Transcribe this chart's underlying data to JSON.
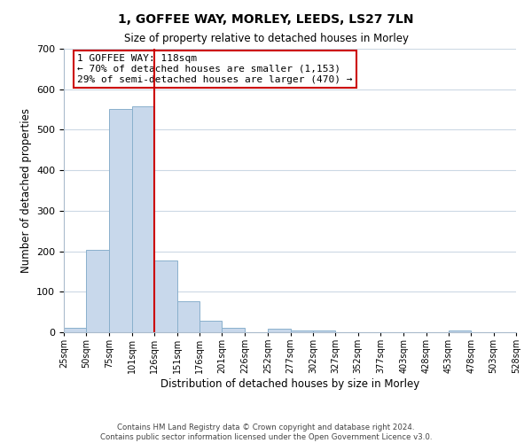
{
  "title": "1, GOFFEE WAY, MORLEY, LEEDS, LS27 7LN",
  "subtitle": "Size of property relative to detached houses in Morley",
  "xlabel": "Distribution of detached houses by size in Morley",
  "ylabel": "Number of detached properties",
  "bar_edges": [
    25,
    50,
    75,
    101,
    126,
    151,
    176,
    201,
    226,
    252,
    277,
    302,
    327,
    352,
    377,
    403,
    428,
    453,
    478,
    503,
    528
  ],
  "bar_heights": [
    10,
    203,
    552,
    558,
    178,
    77,
    29,
    10,
    0,
    8,
    5,
    5,
    0,
    0,
    0,
    0,
    0,
    5,
    0,
    0
  ],
  "bar_color": "#c8d8eb",
  "bar_edge_color": "#8ab0cc",
  "vline_x": 126,
  "vline_color": "#cc0000",
  "ylim": [
    0,
    700
  ],
  "yticks": [
    0,
    100,
    200,
    300,
    400,
    500,
    600,
    700
  ],
  "tick_labels": [
    "25sqm",
    "50sqm",
    "75sqm",
    "101sqm",
    "126sqm",
    "151sqm",
    "176sqm",
    "201sqm",
    "226sqm",
    "252sqm",
    "277sqm",
    "302sqm",
    "327sqm",
    "352sqm",
    "377sqm",
    "403sqm",
    "428sqm",
    "453sqm",
    "478sqm",
    "503sqm",
    "528sqm"
  ],
  "annotation_title": "1 GOFFEE WAY: 118sqm",
  "annotation_line1": "← 70% of detached houses are smaller (1,153)",
  "annotation_line2": "29% of semi-detached houses are larger (470) →",
  "annotation_box_color": "#ffffff",
  "annotation_border_color": "#cc0000",
  "footer1": "Contains HM Land Registry data © Crown copyright and database right 2024.",
  "footer2": "Contains public sector information licensed under the Open Government Licence v3.0.",
  "background_color": "#ffffff",
  "grid_color": "#ccd8e4"
}
